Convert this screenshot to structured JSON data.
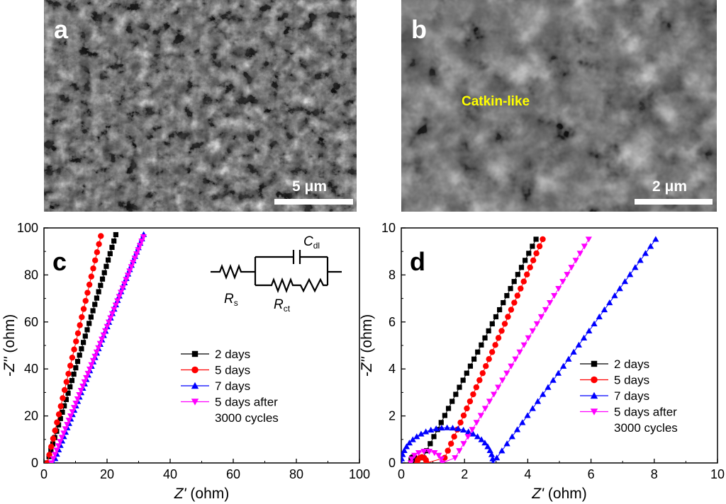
{
  "panels": {
    "a": {
      "letter": "a",
      "scale_label": "5 μm"
    },
    "b": {
      "letter": "b",
      "scale_label": "2 μm",
      "annotation": "Catkin-like"
    }
  },
  "colors": {
    "series": [
      "#000000",
      "#ff0000",
      "#0000ff",
      "#ff00ff"
    ],
    "annotation": "#ffff00"
  },
  "chart_data": [
    {
      "panel": "c",
      "type": "scatter",
      "xlabel_italic": "Z'",
      "xlabel_unit": " (ohm)",
      "ylabel_italic": "-Z''",
      "ylabel_unit": " (ohm)",
      "xlim": [
        0,
        100
      ],
      "ylim": [
        0,
        100
      ],
      "xticks": [
        0,
        20,
        40,
        60,
        80,
        100
      ],
      "yticks": [
        0,
        20,
        40,
        60,
        80,
        100
      ],
      "legend": [
        "2 days",
        "5 days",
        "7 days",
        "5 days after",
        "3000 cycles"
      ],
      "circuit": {
        "Rs": "R",
        "Rs_sub": "s",
        "Rct": "R",
        "Rct_sub": "ct",
        "Cdl": "C",
        "Cdl_sub": "dl"
      },
      "series": [
        {
          "name": "2 days",
          "marker": "square",
          "x0": 1.0,
          "slope": 4.46,
          "step": 1.1,
          "ymax": 98
        },
        {
          "name": "5 days",
          "marker": "circle",
          "x0": 1.1,
          "slope": 5.7,
          "step": 1.1,
          "ymax": 98
        },
        {
          "name": "7 days",
          "marker": "triangle-up",
          "x0": 3.0,
          "slope": 3.4,
          "step": 1.0,
          "ymax": 98
        },
        {
          "name": "5 days after 3000 cycles",
          "marker": "triangle-down",
          "x0": 2.4,
          "slope": 3.3,
          "step": 1.0,
          "ymax": 98
        }
      ]
    },
    {
      "panel": "d",
      "type": "scatter",
      "xlabel_italic": "Z'",
      "xlabel_unit": " (ohm)",
      "ylabel_italic": "-Z''",
      "ylabel_unit": " (ohm)",
      "xlim": [
        0,
        10
      ],
      "ylim": [
        0,
        10
      ],
      "xticks": [
        0,
        2,
        4,
        6,
        8,
        10
      ],
      "yticks": [
        0,
        2,
        4,
        6,
        8,
        10
      ],
      "legend": [
        "2 days",
        "5 days",
        "7 days",
        "5 days after",
        "3000 cycles"
      ],
      "series": [
        {
          "name": "2 days",
          "marker": "square",
          "arc": [
            0.3,
            0.45,
            0.25
          ],
          "tail": [
            0.6,
            2.6
          ],
          "ymax": 9.8
        },
        {
          "name": "5 days",
          "marker": "circle",
          "arc": [
            0.5,
            0.8,
            0.25
          ],
          "tail": [
            1.3,
            3.0
          ],
          "ymax": 9.8
        },
        {
          "name": "7 days",
          "marker": "triangle-up",
          "arc": [
            0.0,
            2.9,
            1.5
          ],
          "tail": [
            2.9,
            1.85
          ],
          "ymax": 9.8
        },
        {
          "name": "5 days after 3000 cycles",
          "marker": "triangle-down",
          "arc": [
            0.3,
            1.3,
            0.5
          ],
          "tail": [
            1.6,
            2.2
          ],
          "ymax": 9.8
        }
      ]
    }
  ]
}
